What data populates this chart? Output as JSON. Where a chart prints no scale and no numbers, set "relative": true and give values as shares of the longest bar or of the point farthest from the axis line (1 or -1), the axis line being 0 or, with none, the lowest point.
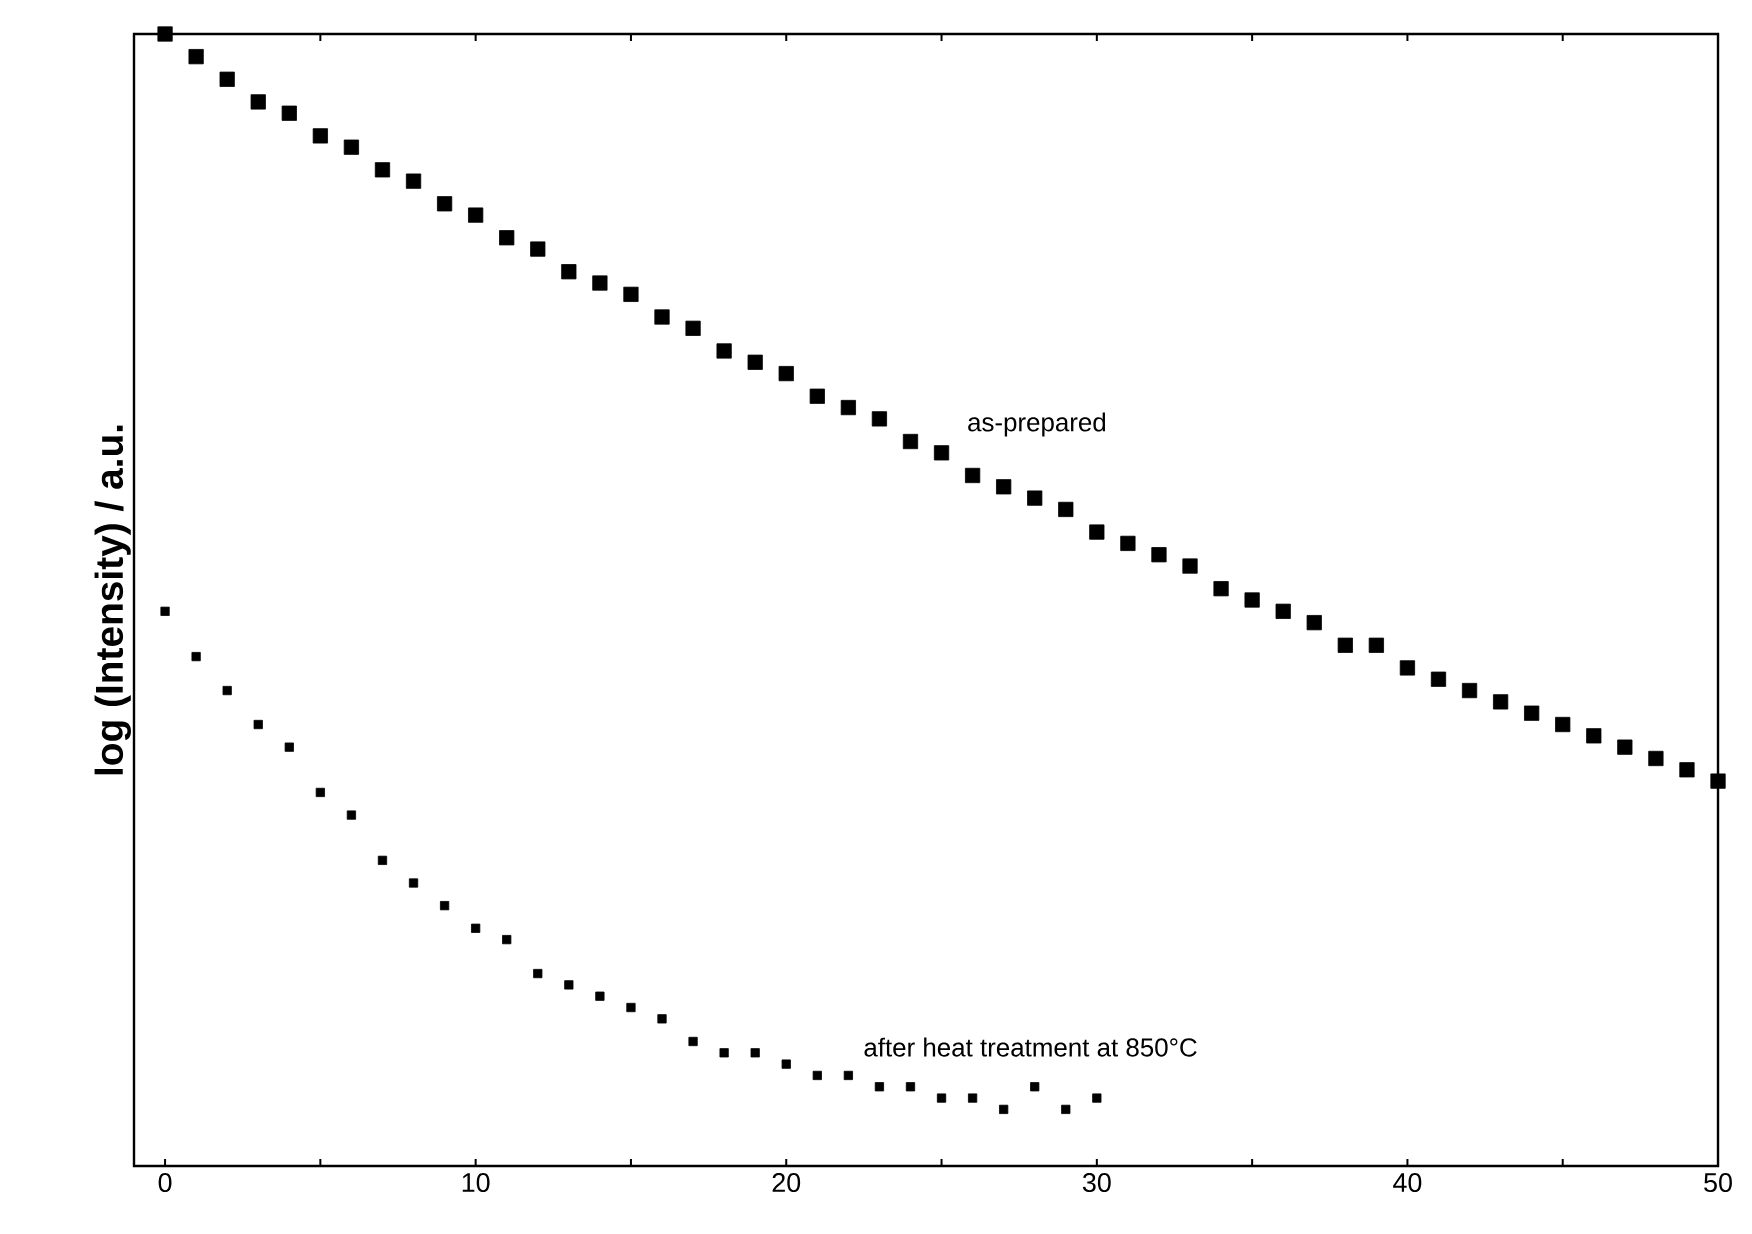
{
  "chart_data": {
    "type": "scatter",
    "ylabel": "log (Intensity) / a.u.",
    "relative": true,
    "marker": "square",
    "xlim": [
      -1,
      50
    ],
    "xticks": [
      0,
      {
        "value": 5,
        "label": null
      },
      10,
      {
        "value": 15,
        "label": null
      },
      20,
      {
        "value": 25,
        "label": null
      },
      30,
      {
        "value": 35,
        "label": null
      },
      40,
      {
        "value": 45,
        "label": null
      },
      50
    ],
    "series": [
      {
        "name": "as-prepared",
        "color": "#000000",
        "x": [
          0,
          1,
          2,
          3,
          4,
          5,
          6,
          7,
          8,
          9,
          10,
          11,
          12,
          13,
          14,
          15,
          16,
          17,
          18,
          19,
          20,
          21,
          22,
          23,
          24,
          25,
          26,
          27,
          28,
          29,
          30,
          31,
          32,
          33,
          34,
          35,
          36,
          37,
          38,
          39,
          40,
          41,
          42,
          43,
          44,
          45,
          46,
          47,
          48,
          49,
          50
        ],
        "values": [
          1.0,
          0.98,
          0.96,
          0.94,
          0.93,
          0.91,
          0.9,
          0.88,
          0.87,
          0.85,
          0.84,
          0.82,
          0.81,
          0.79,
          0.78,
          0.77,
          0.75,
          0.74,
          0.72,
          0.71,
          0.7,
          0.68,
          0.67,
          0.66,
          0.64,
          0.63,
          0.61,
          0.6,
          0.59,
          0.58,
          0.56,
          0.55,
          0.54,
          0.53,
          0.51,
          0.5,
          0.49,
          0.48,
          0.46,
          0.46,
          0.44,
          0.43,
          0.42,
          0.41,
          0.4,
          0.39,
          0.38,
          0.37,
          0.36,
          0.35,
          0.34
        ]
      },
      {
        "name": "after heat treatment at 850°C",
        "color": "#000000",
        "x": [
          0,
          1,
          2,
          3,
          4,
          5,
          6,
          7,
          8,
          9,
          10,
          11,
          12,
          13,
          14,
          15,
          16,
          17,
          18,
          19,
          20,
          21,
          22,
          23,
          24,
          25,
          26,
          27,
          28,
          29,
          30
        ],
        "values": [
          0.49,
          0.45,
          0.42,
          0.39,
          0.37,
          0.33,
          0.31,
          0.27,
          0.25,
          0.23,
          0.21,
          0.2,
          0.17,
          0.16,
          0.15,
          0.14,
          0.13,
          0.11,
          0.1,
          0.1,
          0.09,
          0.08,
          0.08,
          0.07,
          0.07,
          0.06,
          0.06,
          0.05,
          0.07,
          0.05,
          0.06
        ]
      }
    ]
  }
}
